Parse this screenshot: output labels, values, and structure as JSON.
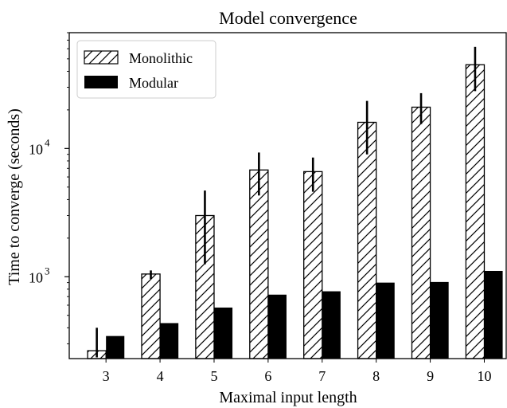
{
  "chart_data": {
    "type": "bar",
    "title": "Model convergence",
    "xlabel": "Maximal input length",
    "ylabel": "Time to converge (seconds)",
    "yscale": "log",
    "ylim": [
      230,
      80000
    ],
    "categories": [
      "3",
      "4",
      "5",
      "6",
      "7",
      "8",
      "9",
      "10"
    ],
    "y_ticks": [
      {
        "value": 1000,
        "base": "10",
        "exp": "3"
      },
      {
        "value": 10000,
        "base": "10",
        "exp": "4"
      }
    ],
    "series": [
      {
        "name": "Monolithic",
        "pattern": "hatch",
        "values": [
          265,
          1050,
          3000,
          6800,
          6600,
          16000,
          21000,
          45000
        ],
        "error_low": [
          235,
          960,
          1250,
          4300,
          4600,
          9000,
          15500,
          28000
        ],
        "error_high": [
          400,
          1120,
          4700,
          9300,
          8500,
          23500,
          27000,
          62000
        ]
      },
      {
        "name": "Modular",
        "pattern": "solid",
        "values": [
          345,
          435,
          575,
          725,
          770,
          900,
          910,
          1110
        ]
      }
    ],
    "legend": "top-left",
    "grid": false
  }
}
